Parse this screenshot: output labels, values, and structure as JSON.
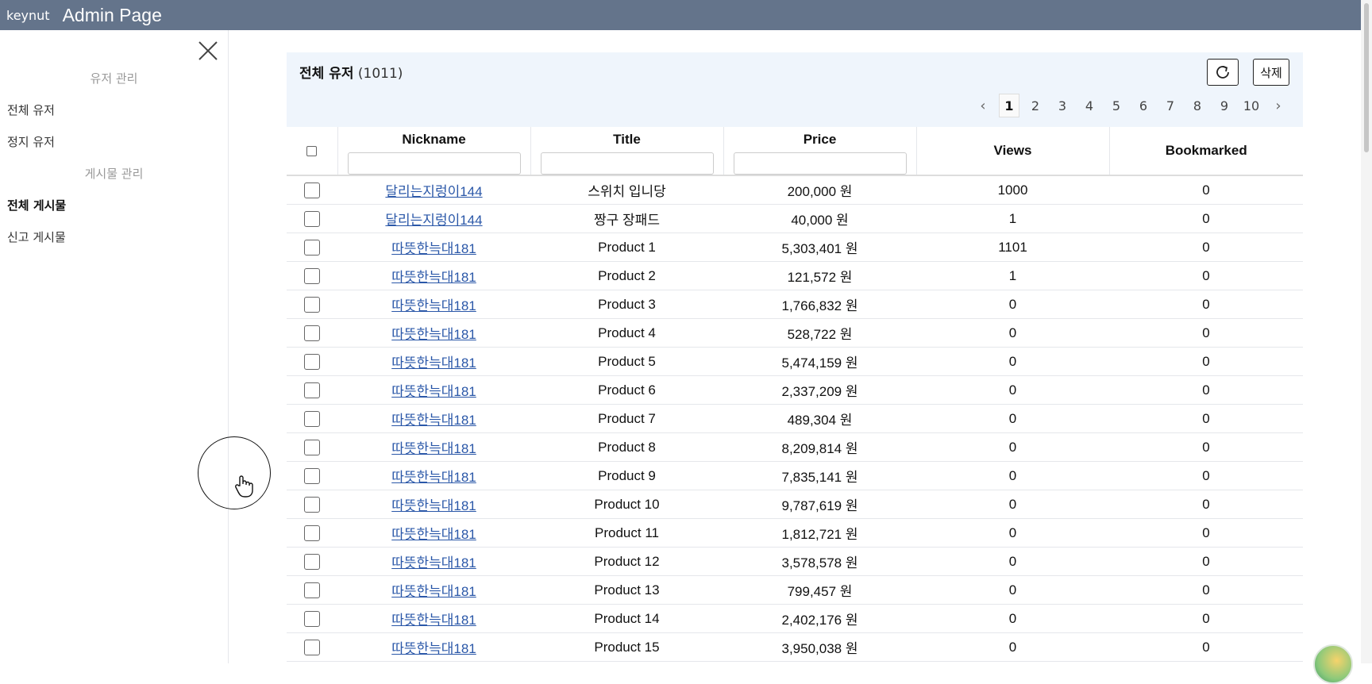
{
  "topbar": {
    "brand": "keynut",
    "title": "Admin Page"
  },
  "sidebar": {
    "sections": [
      {
        "title": "유저 관리",
        "items": [
          "전체 유저",
          "정지 유저"
        ]
      },
      {
        "title": "게시물 관리",
        "items": [
          "전체 게시물",
          "신고 게시물"
        ]
      }
    ],
    "active_item": "전체 게시물"
  },
  "panel": {
    "title": "전체 유저",
    "count": "(1011)",
    "delete_label": "삭제",
    "pagination": {
      "pages": [
        "1",
        "2",
        "3",
        "4",
        "5",
        "6",
        "7",
        "8",
        "9",
        "10"
      ],
      "current": "1"
    }
  },
  "table": {
    "columns": [
      "Nickname",
      "Title",
      "Price",
      "Views",
      "Bookmarked"
    ],
    "rows": [
      {
        "nickname": "달리는지렁이144",
        "title": "스위치 입니당",
        "price": "200,000 원",
        "views": "1000",
        "bookmarked": "0"
      },
      {
        "nickname": "달리는지렁이144",
        "title": "짱구 장패드",
        "price": "40,000 원",
        "views": "1",
        "bookmarked": "0"
      },
      {
        "nickname": "따뜻한늑대181",
        "title": "Product 1",
        "price": "5,303,401 원",
        "views": "1101",
        "bookmarked": "0"
      },
      {
        "nickname": "따뜻한늑대181",
        "title": "Product 2",
        "price": "121,572 원",
        "views": "1",
        "bookmarked": "0"
      },
      {
        "nickname": "따뜻한늑대181",
        "title": "Product 3",
        "price": "1,766,832 원",
        "views": "0",
        "bookmarked": "0"
      },
      {
        "nickname": "따뜻한늑대181",
        "title": "Product 4",
        "price": "528,722 원",
        "views": "0",
        "bookmarked": "0"
      },
      {
        "nickname": "따뜻한늑대181",
        "title": "Product 5",
        "price": "5,474,159 원",
        "views": "0",
        "bookmarked": "0"
      },
      {
        "nickname": "따뜻한늑대181",
        "title": "Product 6",
        "price": "2,337,209 원",
        "views": "0",
        "bookmarked": "0"
      },
      {
        "nickname": "따뜻한늑대181",
        "title": "Product 7",
        "price": "489,304 원",
        "views": "0",
        "bookmarked": "0"
      },
      {
        "nickname": "따뜻한늑대181",
        "title": "Product 8",
        "price": "8,209,814 원",
        "views": "0",
        "bookmarked": "0"
      },
      {
        "nickname": "따뜻한늑대181",
        "title": "Product 9",
        "price": "7,835,141 원",
        "views": "0",
        "bookmarked": "0"
      },
      {
        "nickname": "따뜻한늑대181",
        "title": "Product 10",
        "price": "9,787,619 원",
        "views": "0",
        "bookmarked": "0"
      },
      {
        "nickname": "따뜻한늑대181",
        "title": "Product 11",
        "price": "1,812,721 원",
        "views": "0",
        "bookmarked": "0"
      },
      {
        "nickname": "따뜻한늑대181",
        "title": "Product 12",
        "price": "3,578,578 원",
        "views": "0",
        "bookmarked": "0"
      },
      {
        "nickname": "따뜻한늑대181",
        "title": "Product 13",
        "price": "799,457 원",
        "views": "0",
        "bookmarked": "0"
      },
      {
        "nickname": "따뜻한늑대181",
        "title": "Product 14",
        "price": "2,402,176 원",
        "views": "0",
        "bookmarked": "0"
      },
      {
        "nickname": "따뜻한늑대181",
        "title": "Product 15",
        "price": "3,950,038 원",
        "views": "0",
        "bookmarked": "0"
      }
    ]
  },
  "icons": {
    "close": "close-icon",
    "refresh": "refresh-icon",
    "prev": "chevron-left-icon",
    "next": "chevron-right-icon",
    "cursor": "hand-pointer-icon"
  },
  "colors": {
    "topbar": "#64748b",
    "header_bg": "#eff5fc",
    "link": "#2a57a8"
  }
}
